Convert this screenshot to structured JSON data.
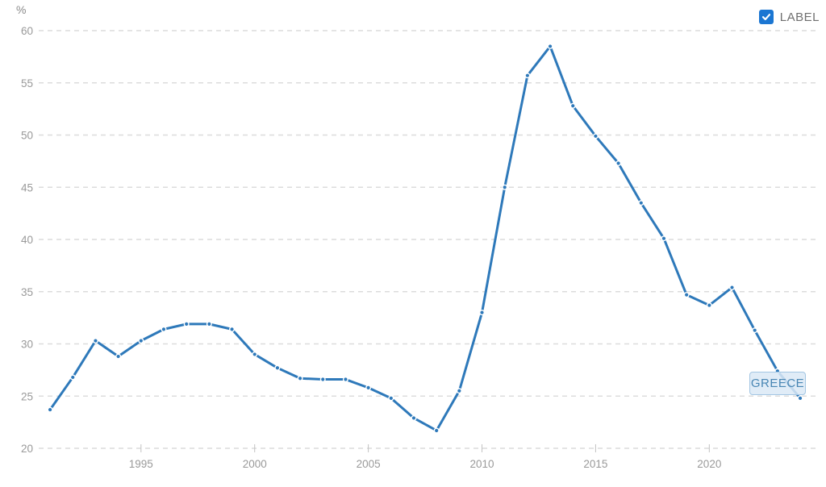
{
  "chart": {
    "unit_label": "%",
    "legend": {
      "label": "LABEL",
      "checked": true
    },
    "annotation": {
      "text": "GREECE"
    },
    "colors": {
      "line": "#2e79ba",
      "point_fill": "#2e79ba",
      "point_halo": "#ffffff",
      "grid": "#dcdcdc",
      "tick": "#c2c2c2",
      "axis_text": "#999999",
      "legend_checkbox": "#1b76d2",
      "legend_text": "#6f6f6f",
      "annotation_bg": "#dbe9f6",
      "annotation_border": "#a3c6e3",
      "annotation_text": "#4886b4"
    }
  },
  "chart_data": {
    "type": "line",
    "title": "",
    "xlabel": "",
    "ylabel": "%",
    "grid": "horizontal-dashed",
    "legend_position": "top-right",
    "x_ticks": [
      1995,
      2000,
      2005,
      2010,
      2015,
      2020
    ],
    "y_ticks": [
      20,
      25,
      30,
      35,
      40,
      45,
      50,
      55,
      60
    ],
    "xlim": [
      1990.5,
      2024.85
    ],
    "ylim": [
      20,
      60
    ],
    "series": [
      {
        "name": "Greece",
        "x": [
          1991,
          1992,
          1993,
          1994,
          1995,
          1996,
          1997,
          1998,
          1999,
          2000,
          2001,
          2002,
          2003,
          2004,
          2005,
          2006,
          2007,
          2008,
          2009,
          2010,
          2011,
          2012,
          2013,
          2014,
          2015,
          2016,
          2017,
          2018,
          2019,
          2020,
          2021,
          2022,
          2023,
          2024
        ],
        "values": [
          23.7,
          26.8,
          30.3,
          28.8,
          30.3,
          31.4,
          31.9,
          31.9,
          31.4,
          29.0,
          27.7,
          26.7,
          26.6,
          26.6,
          25.8,
          24.8,
          22.9,
          21.7,
          25.5,
          33.0,
          45.0,
          55.7,
          58.5,
          52.8,
          49.9,
          47.3,
          43.5,
          40.1,
          34.7,
          33.7,
          35.4,
          31.3,
          27.4,
          24.8
        ]
      }
    ]
  }
}
